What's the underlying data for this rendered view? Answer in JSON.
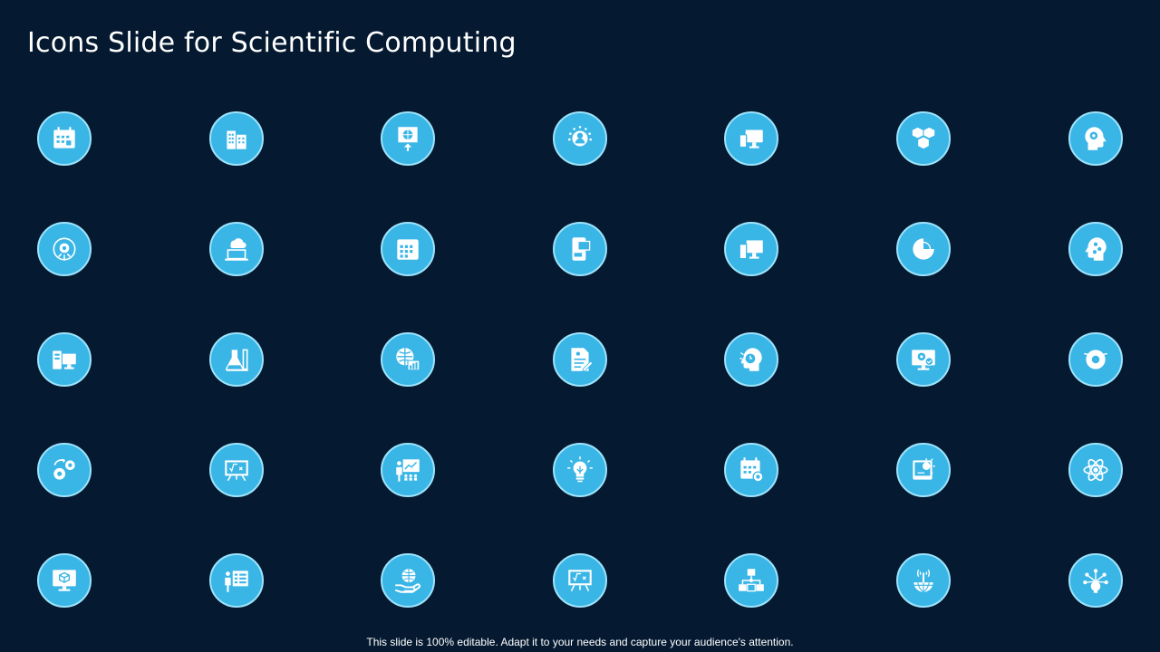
{
  "slide": {
    "title": "Icons Slide for Scientific Computing",
    "footer": "This slide is 100% editable. Adapt it to your needs and capture your audience's attention."
  },
  "icons": [
    "calendar-icon",
    "office-building-icon",
    "globe-board-icon",
    "user-stars-icon",
    "computer-devices-icon",
    "cubes-icon",
    "head-gear-icon",
    "gear-circuit-icon",
    "cloud-laptop-icon",
    "calendar-grid-icon",
    "mobile-payment-icon",
    "desktop-tower-icon",
    "pie-chart-icon",
    "head-network-icon",
    "server-monitor-icon",
    "lab-flask-icon",
    "globe-analytics-icon",
    "document-edit-icon",
    "head-brain-icon",
    "monitor-gear-check-icon",
    "gear-leaf-icon",
    "gears-cycle-icon",
    "formula-board-icon",
    "presentation-growth-icon",
    "lightbulb-idea-icon",
    "calendar-schedule-icon",
    "tablet-idea-icon",
    "atom-icon",
    "cube-monitor-icon",
    "teacher-board-icon",
    "hand-globe-icon",
    "formula-easel-icon",
    "network-connections-icon",
    "antenna-globe-icon",
    "molecule-network-icon"
  ],
  "colors": {
    "background": "#051a31",
    "circle": "#39b5e6",
    "circle_border": "#9ee3fb",
    "text": "#ffffff"
  }
}
